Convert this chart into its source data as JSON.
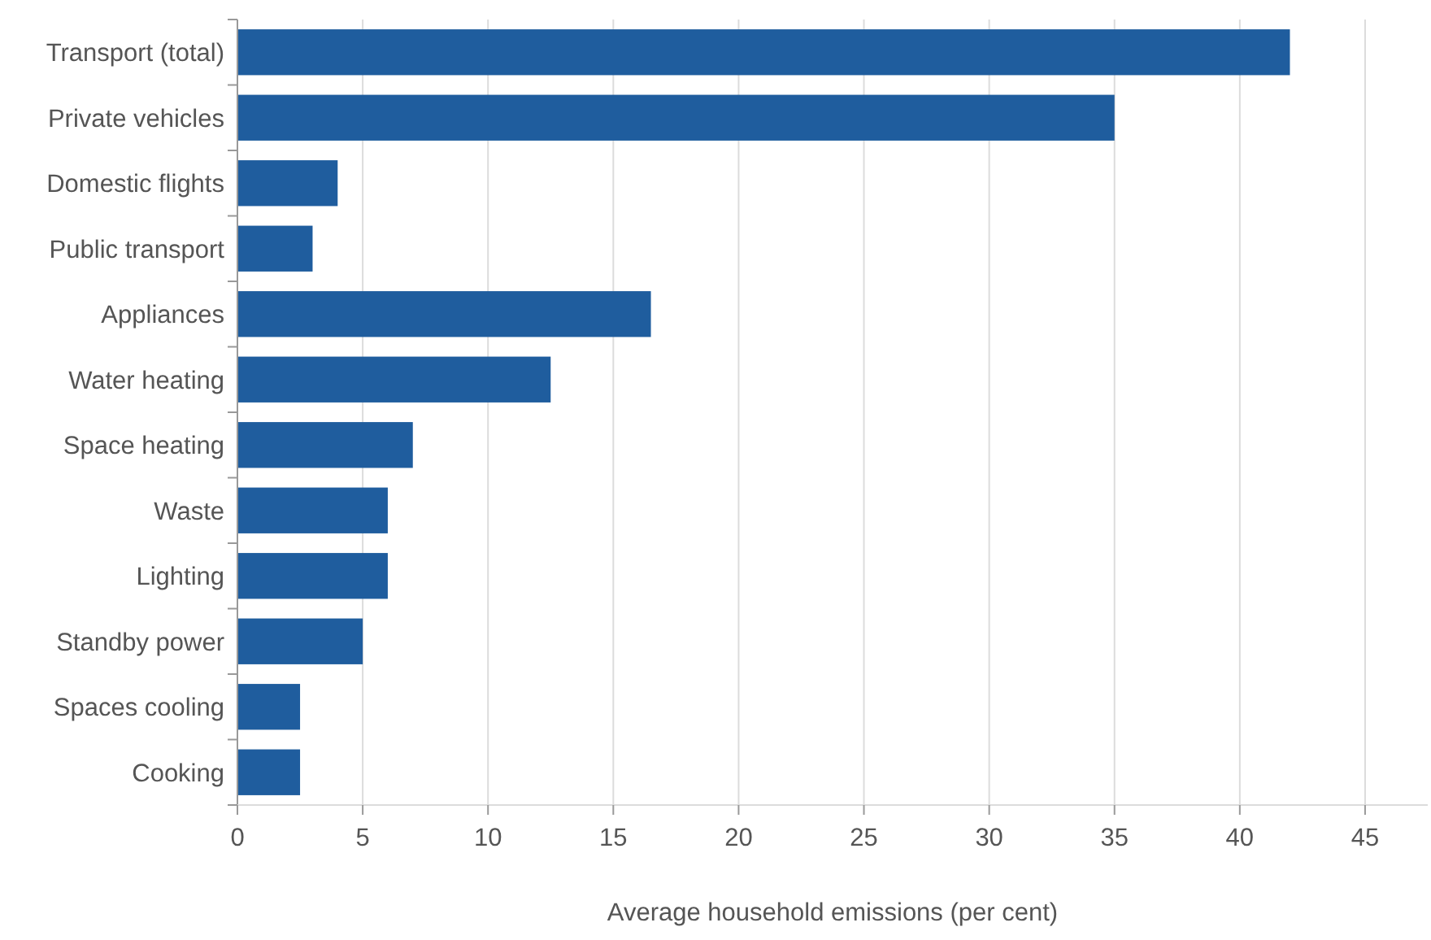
{
  "chart_data": {
    "type": "bar",
    "orientation": "horizontal",
    "xlabel": "Average household emissions (per cent)",
    "categories": [
      "Transport (total)",
      "Private vehicles",
      "Domestic flights",
      "Public transport",
      "Appliances",
      "Water heating",
      "Space heating",
      "Waste",
      "Lighting",
      "Standby power",
      "Spaces cooling",
      "Cooking"
    ],
    "values": [
      42,
      35,
      4,
      3,
      16.5,
      12.5,
      7,
      6,
      6,
      5,
      2.5,
      2.5
    ],
    "color": "#1f5d9e",
    "xlim": [
      0,
      47.5
    ],
    "xticks": [
      0,
      5,
      10,
      15,
      20,
      25,
      30,
      35,
      40,
      45
    ],
    "grid": "x"
  }
}
